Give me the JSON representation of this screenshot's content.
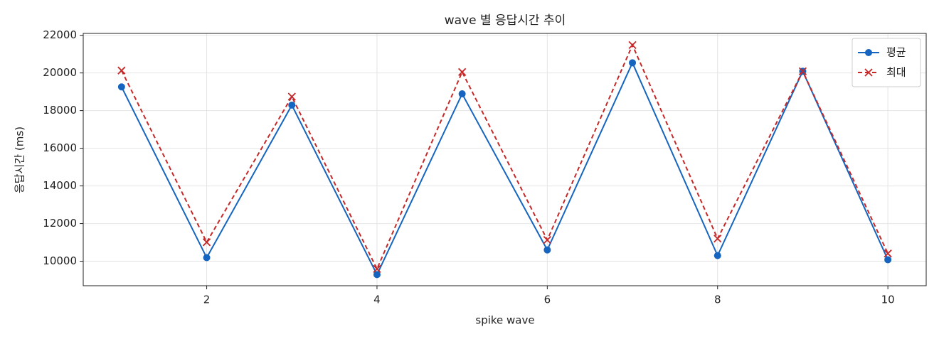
{
  "chart_data": {
    "type": "line",
    "title": "wave 별 응답시간 추이",
    "x_label": "spike wave",
    "y_label": "응답시간 (ms)",
    "x": [
      1,
      2,
      3,
      4,
      5,
      6,
      7,
      8,
      9,
      10
    ],
    "series": [
      {
        "name": "평균",
        "color": "#1565c0",
        "marker": "o",
        "dash": false,
        "values": [
          19260,
          10190,
          18290,
          9290,
          18890,
          10600,
          20540,
          10300,
          20090,
          10080
        ]
      },
      {
        "name": "최대",
        "color": "#c62828",
        "marker": "x",
        "dash": true,
        "values": [
          20130,
          11010,
          18740,
          9590,
          20050,
          11130,
          21480,
          11200,
          20090,
          10410
        ]
      }
    ],
    "xlim": [
      0.55,
      10.45
    ],
    "xticks": [
      2,
      4,
      6,
      8,
      10
    ],
    "ylim": [
      8700,
      22100
    ],
    "yticks": [
      10000,
      12000,
      14000,
      16000,
      18000,
      20000,
      22000
    ],
    "grid": true,
    "legend": "upper right"
  }
}
